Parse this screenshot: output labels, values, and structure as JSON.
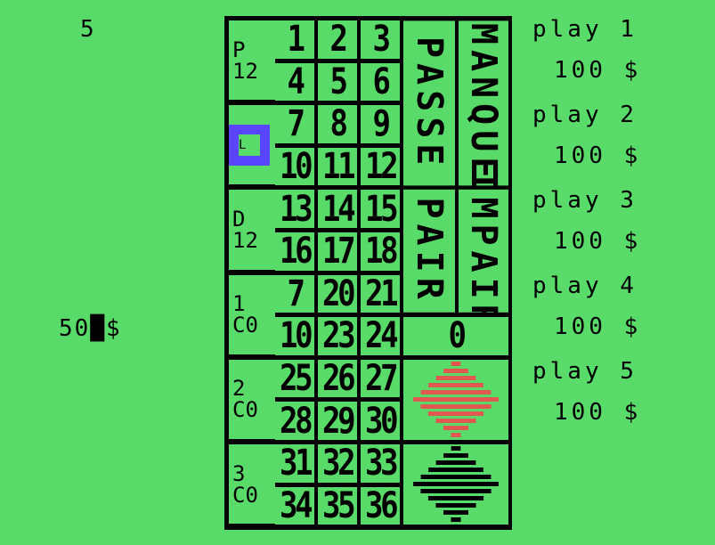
{
  "round": "5",
  "bankroll": "50",
  "cursor_glyph": "█",
  "currency": "$",
  "board": {
    "numbers": [
      "1",
      "2",
      "3",
      "4",
      "5",
      "6",
      "7",
      "8",
      "9",
      "10",
      "11",
      "12",
      "13",
      "14",
      "15",
      "16",
      "17",
      "18",
      "7",
      "20",
      "21",
      "10",
      "23",
      "24",
      "25",
      "26",
      "27",
      "28",
      "29",
      "30",
      "31",
      "32",
      "33",
      "34",
      "35",
      "36"
    ],
    "dozens": [
      "P\n12",
      "",
      "D\n12",
      "1\nC0",
      "2\nC0",
      "3\nC0"
    ],
    "marker_glyph": "L",
    "passe": "PASSE",
    "manque": "MANQUE",
    "pair": "PAIR",
    "impair": "IMPAIR",
    "zero": "0"
  },
  "players": [
    {
      "label": "play 1",
      "bet": "100 $"
    },
    {
      "label": "play 2",
      "bet": "100 $"
    },
    {
      "label": "play 3",
      "bet": "100 $"
    },
    {
      "label": "play 4",
      "bet": "100 $"
    },
    {
      "label": "play 5",
      "bet": "100 $"
    }
  ],
  "colors": {
    "background": "#58db69",
    "marker": "#5a45ff",
    "red": "#e0584f",
    "black": "#000000"
  }
}
